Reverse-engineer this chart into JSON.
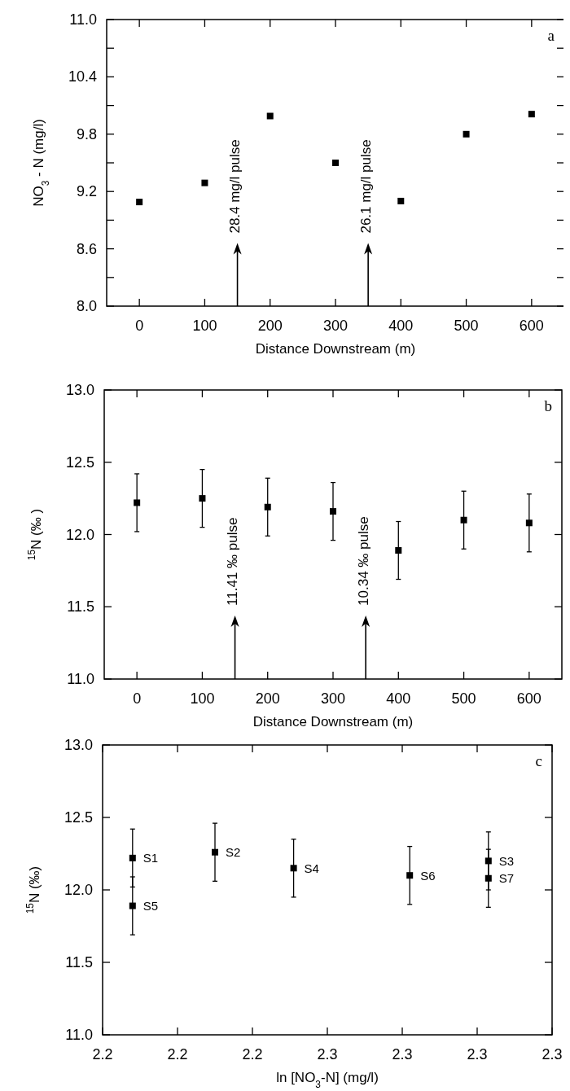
{
  "chart_data": [
    {
      "type": "scatter",
      "marker": "square",
      "xlabel": "Distance Downstream (m)",
      "ylabel": "NO$_{3}$ - N (mg/l)",
      "x": [
        0,
        100,
        200,
        300,
        400,
        500,
        600
      ],
      "series": [
        {
          "color": "#000000",
          "values": [
            9.09,
            9.29,
            9.99,
            9.5,
            9.1,
            9.8,
            10.01
          ]
        }
      ],
      "xlim": [
        -50,
        650
      ],
      "xticks": [
        0,
        100,
        200,
        300,
        400,
        500,
        600
      ],
      "ylim": [
        8.0,
        11.0
      ],
      "yticks": [
        {
          "value": 8.0,
          "label": "8.0"
        },
        {
          "value": 8.3,
          "label": null
        },
        {
          "value": 8.6,
          "label": "8.6"
        },
        {
          "value": 8.9,
          "label": null
        },
        {
          "value": 9.2,
          "label": "9.2"
        },
        {
          "value": 9.5,
          "label": null
        },
        {
          "value": 9.8,
          "label": "9.8"
        },
        {
          "value": 10.1,
          "label": null
        },
        {
          "value": 10.4,
          "label": "10.4"
        },
        {
          "value": 10.7,
          "label": null
        },
        {
          "value": 11.0,
          "label": "11.0"
        }
      ],
      "annotations": [
        "a"
      ],
      "ref_lines": [
        {
          "axis": "x",
          "value": 150,
          "label": "28.4 mg/l pulse"
        },
        {
          "axis": "x",
          "value": 350,
          "label": "26.1 mg/l pulse"
        }
      ]
    },
    {
      "type": "scatter",
      "marker": "square",
      "xlabel": "Distance Downstream (m)",
      "ylabel": "$^{15}$N (‰ )",
      "x": [
        0,
        100,
        200,
        300,
        400,
        500,
        600
      ],
      "series": [
        {
          "color": "#000000",
          "values": [
            12.22,
            12.25,
            12.19,
            12.16,
            11.89,
            12.1,
            12.08
          ],
          "errors": [
            0.2,
            0.2,
            0.2,
            0.2,
            0.2,
            0.2,
            0.2
          ]
        }
      ],
      "xlim": [
        -50,
        650
      ],
      "xticks": [
        0,
        100,
        200,
        300,
        400,
        500,
        600
      ],
      "ylim": [
        11.0,
        13.0
      ],
      "yticks": [
        {
          "value": 11.0,
          "label": "11.0"
        },
        {
          "value": 11.5,
          "label": "11.5"
        },
        {
          "value": 12.0,
          "label": "12.0"
        },
        {
          "value": 12.5,
          "label": "12.5"
        },
        {
          "value": 13.0,
          "label": "13.0"
        }
      ],
      "annotations": [
        "b"
      ],
      "ref_lines": [
        {
          "axis": "x",
          "value": 150,
          "label": "11.41 ‰ pulse"
        },
        {
          "axis": "x",
          "value": 350,
          "label": "10.34 ‰ pulse"
        }
      ]
    },
    {
      "type": "scatter",
      "marker": "square",
      "xlabel": "ln [NO$_{3}$-N]  (mg/l)",
      "ylabel": "$^{15}$N (‰)",
      "series": [
        {
          "name": "S1",
          "color": "#000000",
          "x": [
            2.208
          ],
          "values": [
            12.22
          ],
          "errors": [
            0.2
          ]
        },
        {
          "name": "S5",
          "color": "#000000",
          "x": [
            2.208
          ],
          "values": [
            11.89
          ],
          "errors": [
            0.2
          ]
        },
        {
          "name": "S2",
          "color": "#000000",
          "x": [
            2.23
          ],
          "values": [
            12.26
          ],
          "errors": [
            0.2
          ]
        },
        {
          "name": "S4",
          "color": "#000000",
          "x": [
            2.251
          ],
          "values": [
            12.15
          ],
          "errors": [
            0.2
          ]
        },
        {
          "name": "S6",
          "color": "#000000",
          "x": [
            2.282
          ],
          "values": [
            12.1
          ],
          "errors": [
            0.2
          ]
        },
        {
          "name": "S3",
          "color": "#000000",
          "x": [
            2.303
          ],
          "values": [
            12.2
          ],
          "errors": [
            0.2
          ]
        },
        {
          "name": "S7",
          "color": "#000000",
          "x": [
            2.303
          ],
          "values": [
            12.08
          ],
          "errors": [
            0.2
          ]
        }
      ],
      "xlim": [
        2.2,
        2.32
      ],
      "xticks": [
        {
          "value": 2.2,
          "label": "2.2"
        },
        {
          "value": 2.22,
          "label": "2.2"
        },
        {
          "value": 2.24,
          "label": "2.2"
        },
        {
          "value": 2.26,
          "label": "2.3"
        },
        {
          "value": 2.28,
          "label": "2.3"
        },
        {
          "value": 2.3,
          "label": "2.3"
        },
        {
          "value": 2.32,
          "label": "2.3"
        }
      ],
      "ylim": [
        11.0,
        13.0
      ],
      "yticks": [
        {
          "value": 11.0,
          "label": "11.0"
        },
        {
          "value": 11.5,
          "label": "11.5"
        },
        {
          "value": 12.0,
          "label": "12.0"
        },
        {
          "value": 12.5,
          "label": "12.5"
        },
        {
          "value": 13.0,
          "label": "13.0"
        }
      ],
      "annotations": [
        "c"
      ]
    }
  ]
}
